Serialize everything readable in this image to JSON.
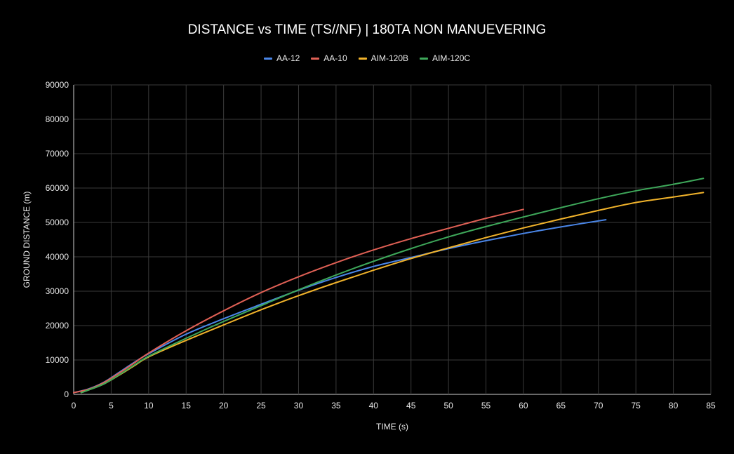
{
  "chart_data": {
    "type": "line",
    "title": "DISTANCE vs TIME (TS//NF) | 180TA NON MANUEVERING",
    "xlabel": "TIME (s)",
    "ylabel": "GROUND DISTANCE (m)",
    "xlim": [
      0,
      85
    ],
    "ylim": [
      0,
      90000
    ],
    "xticks": [
      0,
      5,
      10,
      15,
      20,
      25,
      30,
      35,
      40,
      45,
      50,
      55,
      60,
      65,
      70,
      75,
      80,
      85
    ],
    "yticks": [
      0,
      10000,
      20000,
      30000,
      40000,
      50000,
      60000,
      70000,
      80000,
      90000
    ],
    "grid": true,
    "legend_position": "top",
    "series": [
      {
        "name": "AA-12",
        "color": "#4a86e8",
        "x": [
          0,
          2,
          4,
          6,
          8,
          10,
          15,
          20,
          25,
          30,
          35,
          40,
          45,
          50,
          55,
          60,
          65,
          71
        ],
        "y": [
          500,
          1600,
          3500,
          6300,
          9200,
          11800,
          17500,
          22000,
          26200,
          30300,
          34000,
          37200,
          39800,
          42400,
          44700,
          46800,
          48700,
          50800
        ]
      },
      {
        "name": "AA-10",
        "color": "#e06055",
        "x": [
          0,
          2,
          4,
          6,
          8,
          10,
          15,
          20,
          25,
          30,
          35,
          40,
          45,
          50,
          55,
          60
        ],
        "y": [
          500,
          1500,
          3400,
          6100,
          9000,
          12000,
          18500,
          24300,
          29600,
          34200,
          38300,
          42000,
          45300,
          48300,
          51200,
          53800
        ]
      },
      {
        "name": "AIM-120B",
        "color": "#f1b32b",
        "x": [
          1,
          2,
          4,
          6,
          8,
          10,
          15,
          20,
          25,
          30,
          35,
          40,
          45,
          50,
          55,
          60,
          65,
          70,
          75,
          80,
          84
        ],
        "y": [
          500,
          1300,
          3000,
          5500,
          8200,
          10900,
          15700,
          20200,
          24600,
          28700,
          32500,
          36100,
          39500,
          42600,
          45600,
          48400,
          51000,
          53500,
          55800,
          57400,
          58700
        ]
      },
      {
        "name": "AIM-120C",
        "color": "#3ea85a",
        "x": [
          1,
          2,
          4,
          6,
          8,
          10,
          15,
          20,
          25,
          30,
          35,
          40,
          45,
          50,
          55,
          60,
          65,
          70,
          75,
          80,
          84
        ],
        "y": [
          500,
          1300,
          3000,
          5600,
          8400,
          11100,
          16300,
          21200,
          25800,
          30400,
          34700,
          38700,
          42400,
          45800,
          48800,
          51600,
          54300,
          56900,
          59200,
          61100,
          62800
        ]
      }
    ]
  }
}
